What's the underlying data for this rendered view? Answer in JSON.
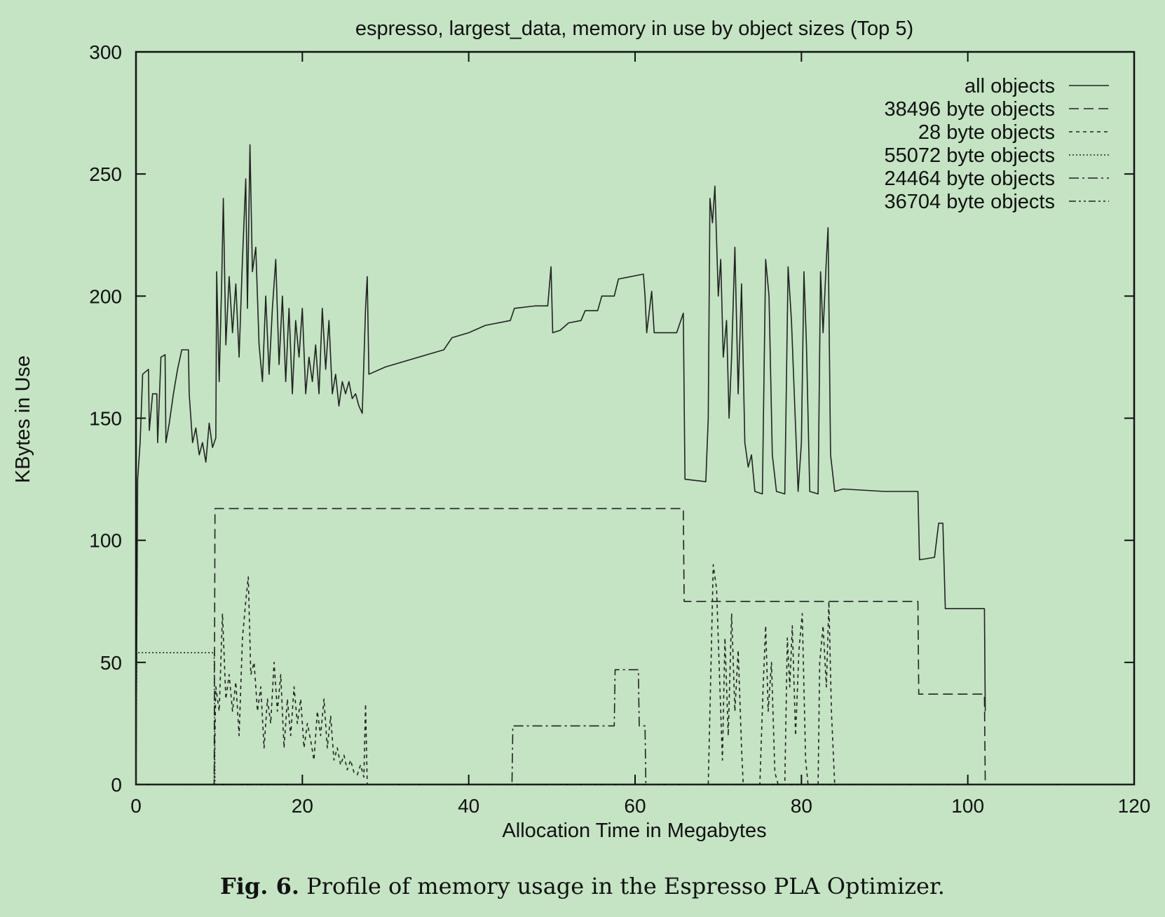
{
  "chart_data": {
    "type": "line",
    "title": "espresso, largest_data, memory in use by object sizes (Top 5)",
    "xlabel": "Allocation Time in Megabytes",
    "ylabel": "KBytes in Use",
    "xlim": [
      0,
      120
    ],
    "ylim": [
      0,
      300
    ],
    "xticks": [
      0,
      20,
      40,
      60,
      80,
      100,
      120
    ],
    "yticks": [
      0,
      50,
      100,
      150,
      200,
      250,
      300
    ],
    "grid": false,
    "legend_position": "top-right",
    "series": [
      {
        "name": "all objects",
        "style": "solid",
        "points": [
          [
            0,
            0
          ],
          [
            0.2,
            125
          ],
          [
            0.5,
            140
          ],
          [
            0.8,
            168
          ],
          [
            1.5,
            170
          ],
          [
            1.6,
            145
          ],
          [
            2,
            160
          ],
          [
            2.5,
            160
          ],
          [
            2.6,
            140
          ],
          [
            3,
            175
          ],
          [
            3.5,
            176
          ],
          [
            3.6,
            140
          ],
          [
            4,
            148
          ],
          [
            4.5,
            160
          ],
          [
            5,
            170
          ],
          [
            5.5,
            178
          ],
          [
            6.3,
            178
          ],
          [
            6.4,
            160
          ],
          [
            6.8,
            140
          ],
          [
            7.2,
            146
          ],
          [
            7.6,
            135
          ],
          [
            8,
            140
          ],
          [
            8.4,
            132
          ],
          [
            8.8,
            148
          ],
          [
            9.2,
            138
          ],
          [
            9.6,
            142
          ],
          [
            9.7,
            210
          ],
          [
            10,
            165
          ],
          [
            10.3,
            205
          ],
          [
            10.5,
            240
          ],
          [
            10.8,
            180
          ],
          [
            11.2,
            208
          ],
          [
            11.6,
            185
          ],
          [
            12,
            205
          ],
          [
            12.4,
            175
          ],
          [
            12.8,
            215
          ],
          [
            13.2,
            248
          ],
          [
            13.4,
            195
          ],
          [
            13.7,
            262
          ],
          [
            14,
            210
          ],
          [
            14.4,
            220
          ],
          [
            14.8,
            180
          ],
          [
            15.2,
            165
          ],
          [
            15.6,
            200
          ],
          [
            16,
            168
          ],
          [
            16.4,
            195
          ],
          [
            16.8,
            215
          ],
          [
            17.2,
            172
          ],
          [
            17.6,
            200
          ],
          [
            18,
            165
          ],
          [
            18.4,
            195
          ],
          [
            18.8,
            160
          ],
          [
            19.2,
            190
          ],
          [
            19.6,
            175
          ],
          [
            20,
            195
          ],
          [
            20.4,
            160
          ],
          [
            20.8,
            175
          ],
          [
            21.2,
            165
          ],
          [
            21.6,
            180
          ],
          [
            22,
            160
          ],
          [
            22.4,
            195
          ],
          [
            22.8,
            170
          ],
          [
            23.2,
            190
          ],
          [
            23.6,
            160
          ],
          [
            24,
            168
          ],
          [
            24.4,
            155
          ],
          [
            24.8,
            165
          ],
          [
            25.2,
            160
          ],
          [
            25.6,
            165
          ],
          [
            26,
            158
          ],
          [
            26.4,
            160
          ],
          [
            26.8,
            155
          ],
          [
            27.2,
            152
          ],
          [
            27.6,
            195
          ],
          [
            27.8,
            208
          ],
          [
            28,
            168
          ],
          [
            30,
            171
          ],
          [
            35,
            176
          ],
          [
            37,
            178
          ],
          [
            38,
            183
          ],
          [
            40,
            185
          ],
          [
            42,
            188
          ],
          [
            45,
            190
          ],
          [
            45.5,
            195
          ],
          [
            48,
            196
          ],
          [
            49.5,
            196
          ],
          [
            49.9,
            212
          ],
          [
            50.1,
            185
          ],
          [
            51,
            186
          ],
          [
            52,
            189
          ],
          [
            53.5,
            190
          ],
          [
            54,
            194
          ],
          [
            55.5,
            194
          ],
          [
            56,
            200
          ],
          [
            57.5,
            200
          ],
          [
            58,
            207
          ],
          [
            61,
            209
          ],
          [
            61.2,
            200
          ],
          [
            61.4,
            185
          ],
          [
            62,
            202
          ],
          [
            62.3,
            185
          ],
          [
            65,
            185
          ],
          [
            65.8,
            193
          ],
          [
            66,
            125
          ],
          [
            68.5,
            124
          ],
          [
            68.8,
            150
          ],
          [
            69,
            240
          ],
          [
            69.3,
            230
          ],
          [
            69.6,
            245
          ],
          [
            70,
            200
          ],
          [
            70.3,
            215
          ],
          [
            70.6,
            175
          ],
          [
            71,
            190
          ],
          [
            71.3,
            150
          ],
          [
            71.6,
            175
          ],
          [
            72,
            220
          ],
          [
            72.4,
            160
          ],
          [
            72.8,
            205
          ],
          [
            73.2,
            140
          ],
          [
            73.6,
            130
          ],
          [
            74,
            135
          ],
          [
            74.4,
            120
          ],
          [
            75.3,
            119
          ],
          [
            75.7,
            215
          ],
          [
            76.1,
            200
          ],
          [
            76.5,
            135
          ],
          [
            77,
            120
          ],
          [
            78,
            119
          ],
          [
            78.4,
            212
          ],
          [
            78.8,
            190
          ],
          [
            79.2,
            155
          ],
          [
            79.6,
            120
          ],
          [
            80,
            140
          ],
          [
            80.3,
            210
          ],
          [
            80.6,
            180
          ],
          [
            81,
            120
          ],
          [
            82,
            119
          ],
          [
            82.3,
            210
          ],
          [
            82.6,
            185
          ],
          [
            83,
            215
          ],
          [
            83.2,
            228
          ],
          [
            83.5,
            135
          ],
          [
            84,
            120
          ],
          [
            85,
            121
          ],
          [
            90,
            120
          ],
          [
            94,
            120
          ],
          [
            94.2,
            92
          ],
          [
            96,
            93
          ],
          [
            96.5,
            107
          ],
          [
            97,
            107
          ],
          [
            97.3,
            72
          ],
          [
            102,
            72
          ],
          [
            102.1,
            30
          ]
        ]
      },
      {
        "name": "38496 byte objects",
        "style": "dashed",
        "points": [
          [
            0,
            0
          ],
          [
            9.4,
            0
          ],
          [
            9.5,
            113
          ],
          [
            65.8,
            113
          ],
          [
            65.9,
            75
          ],
          [
            94,
            75
          ],
          [
            94.1,
            37
          ],
          [
            102,
            37
          ],
          [
            102.1,
            0
          ],
          [
            120,
            0
          ]
        ]
      },
      {
        "name": "28 byte objects",
        "style": "dotted-dash",
        "points": [
          [
            0,
            0
          ],
          [
            9.4,
            0
          ],
          [
            9.6,
            40
          ],
          [
            10,
            30
          ],
          [
            10.4,
            70
          ],
          [
            10.8,
            35
          ],
          [
            11.2,
            45
          ],
          [
            11.6,
            30
          ],
          [
            12,
            42
          ],
          [
            12.4,
            20
          ],
          [
            12.8,
            60
          ],
          [
            13.2,
            75
          ],
          [
            13.5,
            85
          ],
          [
            13.8,
            45
          ],
          [
            14.2,
            50
          ],
          [
            14.6,
            30
          ],
          [
            15,
            40
          ],
          [
            15.4,
            15
          ],
          [
            15.8,
            35
          ],
          [
            16.2,
            25
          ],
          [
            16.6,
            50
          ],
          [
            17,
            30
          ],
          [
            17.4,
            45
          ],
          [
            17.8,
            15
          ],
          [
            18.2,
            35
          ],
          [
            18.6,
            20
          ],
          [
            19,
            40
          ],
          [
            19.4,
            25
          ],
          [
            19.8,
            35
          ],
          [
            20.2,
            15
          ],
          [
            20.6,
            25
          ],
          [
            21,
            18
          ],
          [
            21.4,
            10
          ],
          [
            21.8,
            30
          ],
          [
            22.2,
            20
          ],
          [
            22.6,
            35
          ],
          [
            23,
            15
          ],
          [
            23.4,
            28
          ],
          [
            23.8,
            10
          ],
          [
            24.2,
            15
          ],
          [
            24.6,
            8
          ],
          [
            25,
            12
          ],
          [
            25.4,
            6
          ],
          [
            25.8,
            10
          ],
          [
            26.2,
            5
          ],
          [
            26.6,
            4
          ],
          [
            27,
            8
          ],
          [
            27.4,
            3
          ],
          [
            27.6,
            33
          ],
          [
            27.8,
            0
          ],
          [
            68,
            0
          ],
          [
            68.8,
            0
          ],
          [
            69.2,
            60
          ],
          [
            69.4,
            90
          ],
          [
            69.8,
            80
          ],
          [
            70.2,
            40
          ],
          [
            70.5,
            10
          ],
          [
            70.8,
            60
          ],
          [
            71.2,
            20
          ],
          [
            71.6,
            70
          ],
          [
            72,
            30
          ],
          [
            72.4,
            55
          ],
          [
            72.8,
            15
          ],
          [
            73,
            0
          ],
          [
            75,
            0
          ],
          [
            75.4,
            40
          ],
          [
            75.7,
            65
          ],
          [
            76,
            30
          ],
          [
            76.4,
            50
          ],
          [
            76.8,
            5
          ],
          [
            77.2,
            0
          ],
          [
            78,
            0
          ],
          [
            78.3,
            60
          ],
          [
            78.6,
            40
          ],
          [
            78.9,
            65
          ],
          [
            79.3,
            20
          ],
          [
            79.7,
            55
          ],
          [
            80.1,
            70
          ],
          [
            80.5,
            10
          ],
          [
            80.8,
            0
          ],
          [
            82,
            0
          ],
          [
            82.2,
            50
          ],
          [
            82.6,
            65
          ],
          [
            83,
            40
          ],
          [
            83.3,
            75
          ],
          [
            83.6,
            30
          ],
          [
            84,
            0
          ],
          [
            120,
            0
          ]
        ]
      },
      {
        "name": "55072 byte objects",
        "style": "dotted",
        "points": [
          [
            0,
            0
          ],
          [
            0.1,
            54
          ],
          [
            9.4,
            54
          ],
          [
            9.5,
            0
          ],
          [
            120,
            0
          ]
        ]
      },
      {
        "name": "24464 byte objects",
        "style": "dash-dot",
        "points": [
          [
            0,
            0
          ],
          [
            45.2,
            0
          ],
          [
            45.3,
            24
          ],
          [
            57.5,
            24
          ],
          [
            57.6,
            47
          ],
          [
            60.4,
            47
          ],
          [
            60.5,
            24
          ],
          [
            61.2,
            24
          ],
          [
            61.3,
            0
          ],
          [
            120,
            0
          ]
        ]
      },
      {
        "name": "36704 byte objects",
        "style": "dash-dot-dot",
        "points": [
          [
            0,
            0
          ],
          [
            120,
            0
          ]
        ]
      }
    ]
  },
  "caption": {
    "fig": "Fig. 6.",
    "text": "Profile of memory usage in the Espresso PLA Optimizer."
  }
}
